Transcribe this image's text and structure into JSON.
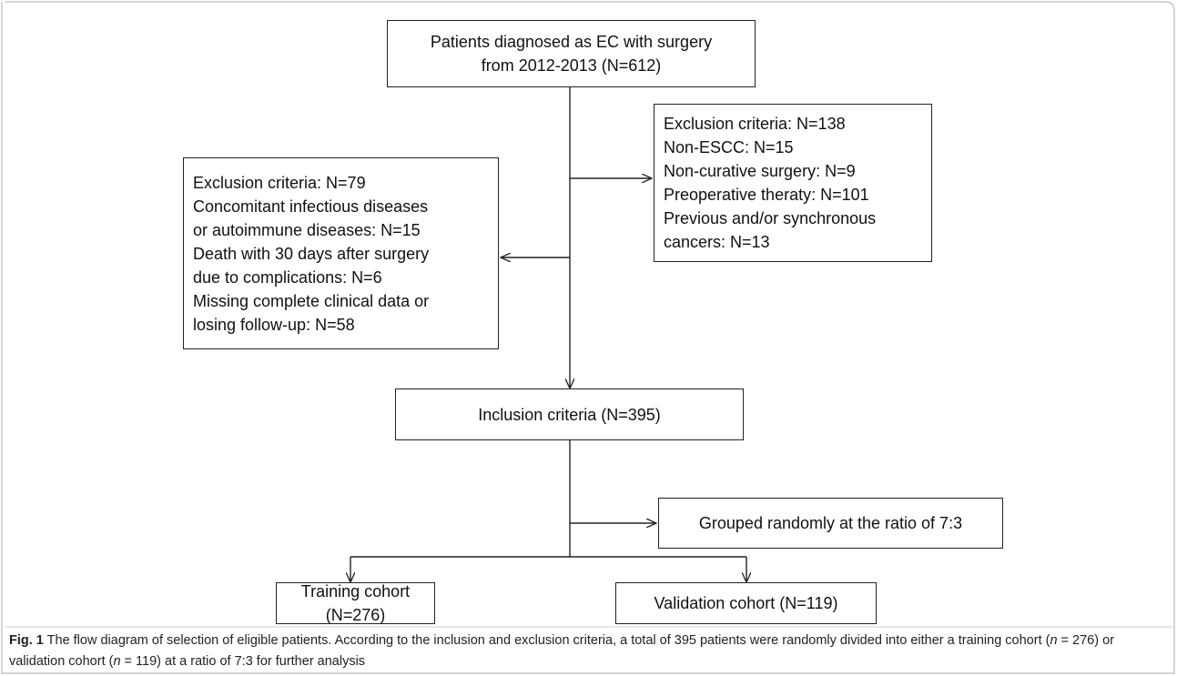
{
  "nodes": [
    {
      "lines": [
        "Patients diagnosed as EC with surgery",
        "from 2012-2013 (N=612)"
      ]
    },
    {
      "lines": [
        "Exclusion criteria: N=138",
        "Non-ESCC: N=15",
        "Non-curative surgery: N=9",
        "Preoperative theraty: N=101",
        "Previous and/or synchronous",
        "cancers: N=13"
      ]
    },
    {
      "lines": [
        "Exclusion criteria: N=79",
        "Concomitant infectious diseases",
        "or autoimmune diseases: N=15",
        "Death with 30 days after surgery",
        "due to complications: N=6",
        "Missing complete clinical data or",
        "losing follow-up: N=58"
      ]
    },
    {
      "lines": [
        "Inclusion criteria (N=395)"
      ]
    },
    {
      "lines": [
        "Grouped randomly at the ratio of 7:3"
      ]
    },
    {
      "lines": [
        "Training cohort (N=276)"
      ]
    },
    {
      "lines": [
        "Validation cohort (N=119)"
      ]
    }
  ],
  "caption": {
    "label": "Fig. 1",
    "parts": [
      " The flow diagram of selection of eligible patients. According to the inclusion and exclusion criteria, a total of 395 patients were randomly divided into either a training cohort (",
      "n",
      " = 276) or validation cohort (",
      "n",
      " = 119) at a ratio of 7:3 for further analysis"
    ]
  }
}
